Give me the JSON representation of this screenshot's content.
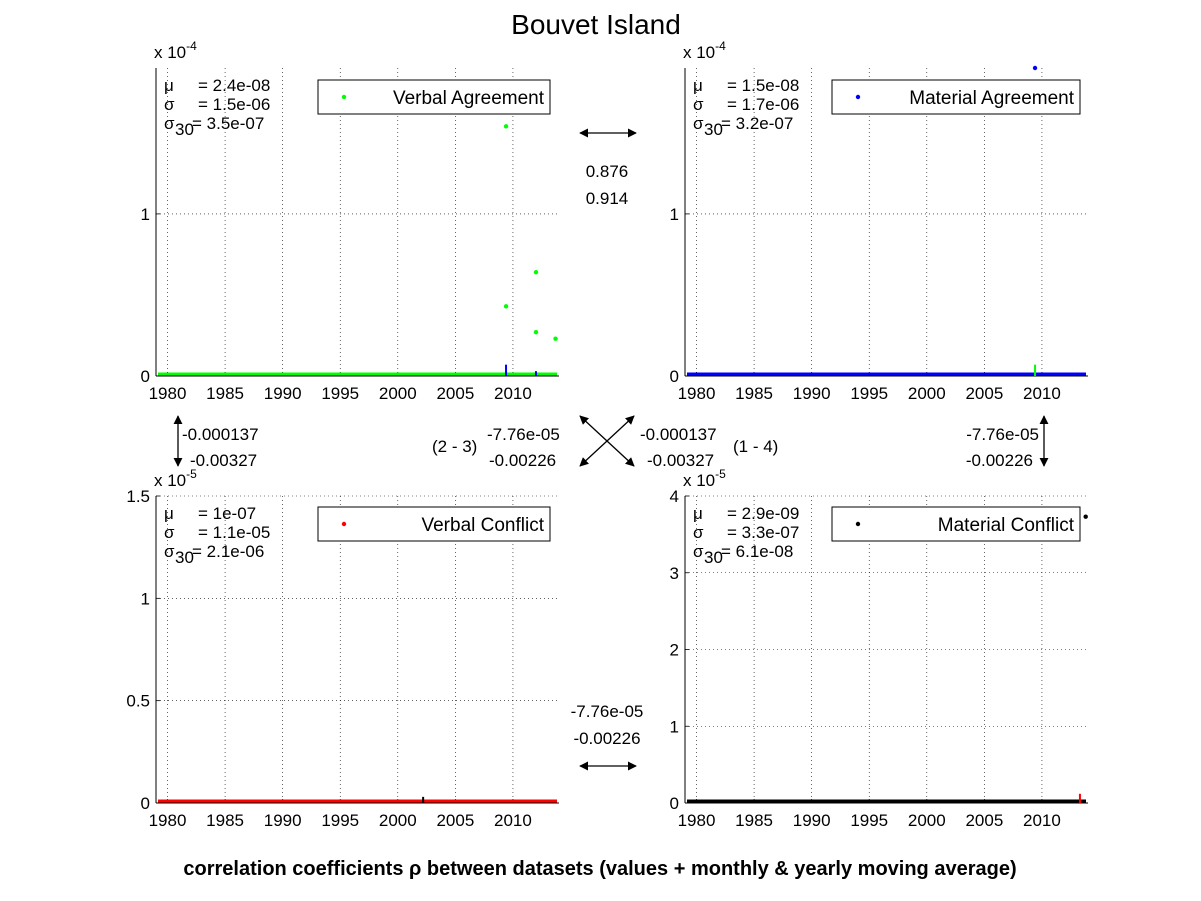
{
  "figure": {
    "title": "Bouvet Island",
    "footer": "correlation coefficients ρ between datasets (values + monthly & yearly moving average)"
  },
  "chart_data": [
    {
      "type": "scatter",
      "name": "Verbal Agreement",
      "color": "#00ff00",
      "exponent_label": "x 10",
      "exponent_power": "-4",
      "xlim": [
        1979,
        2014
      ],
      "ylim": [
        0,
        1.9
      ],
      "x_ticks": [
        1980,
        1985,
        1990,
        1995,
        2000,
        2005,
        2010
      ],
      "x_tick_labels": [
        "1980",
        "1985",
        "1990",
        "1995",
        "2000",
        "2005",
        "2010"
      ],
      "y_ticks": [
        0,
        1
      ],
      "y_tick_labels": [
        "0",
        "1"
      ],
      "legend": "Verbal Agreement",
      "stats": [
        {
          "symbol": "μ",
          "sub": "",
          "value": "= 2.4e-08"
        },
        {
          "symbol": "σ",
          "sub": "",
          "value": "= 1.5e-06"
        },
        {
          "symbol": "σ",
          "sub": "30",
          "value": "= 3.5e-07"
        }
      ],
      "points": [
        [
          2009.4,
          1.54
        ],
        [
          2009.4,
          0.43
        ],
        [
          2012.0,
          0.64
        ],
        [
          2012.0,
          0.27
        ],
        [
          2013.7,
          0.23
        ]
      ],
      "baseline_color": "#00ff00",
      "overlay_spikes": [
        {
          "x": 2009.4,
          "height": 0.07,
          "color": "#0000ff"
        },
        {
          "x": 2012.0,
          "height": 0.03,
          "color": "#0000ff"
        }
      ]
    },
    {
      "type": "scatter",
      "name": "Material Agreement",
      "color": "#0000ff",
      "exponent_label": "x 10",
      "exponent_power": "-4",
      "xlim": [
        1979,
        2014
      ],
      "ylim": [
        0,
        1.9
      ],
      "x_ticks": [
        1980,
        1985,
        1990,
        1995,
        2000,
        2005,
        2010
      ],
      "x_tick_labels": [
        "1980",
        "1985",
        "1990",
        "1995",
        "2000",
        "2005",
        "2010"
      ],
      "y_ticks": [
        0,
        1
      ],
      "y_tick_labels": [
        "0",
        "1"
      ],
      "legend": "Material Agreement",
      "stats": [
        {
          "symbol": "μ",
          "sub": "",
          "value": "= 1.5e-08"
        },
        {
          "symbol": "σ",
          "sub": "",
          "value": "= 1.7e-06"
        },
        {
          "symbol": "σ",
          "sub": "30",
          "value": "= 3.2e-07"
        }
      ],
      "points": [
        [
          2009.4,
          1.9
        ]
      ],
      "baseline_color": "#0000ff",
      "overlay_spikes": [
        {
          "x": 2009.4,
          "height": 0.07,
          "color": "#00ff00"
        }
      ]
    },
    {
      "type": "scatter",
      "name": "Verbal Conflict",
      "color": "#ff0000",
      "exponent_label": "x 10",
      "exponent_power": "-5",
      "xlim": [
        1979,
        2014
      ],
      "ylim": [
        0,
        1.5
      ],
      "x_ticks": [
        1980,
        1985,
        1990,
        1995,
        2000,
        2005,
        2010
      ],
      "x_tick_labels": [
        "1980",
        "1985",
        "1990",
        "1995",
        "2000",
        "2005",
        "2010"
      ],
      "y_ticks": [
        0,
        0.5,
        1,
        1.5
      ],
      "y_tick_labels": [
        "0",
        "0.5",
        "1",
        "1.5"
      ],
      "legend": "Verbal Conflict",
      "stats": [
        {
          "symbol": "μ",
          "sub": "",
          "value": "= 1e-07"
        },
        {
          "symbol": "σ",
          "sub": "",
          "value": "= 1.1e-05"
        },
        {
          "symbol": "σ",
          "sub": "30",
          "value": "= 2.1e-06"
        }
      ],
      "points": [],
      "baseline_color": "#ff0000",
      "overlay_spikes": [
        {
          "x": 2002.2,
          "height": 0.03,
          "color": "#000000"
        }
      ]
    },
    {
      "type": "scatter",
      "name": "Material Conflict",
      "color": "#000000",
      "exponent_label": "x 10",
      "exponent_power": "-5",
      "xlim": [
        1979,
        2014
      ],
      "ylim": [
        0,
        4
      ],
      "x_ticks": [
        1980,
        1985,
        1990,
        1995,
        2000,
        2005,
        2010
      ],
      "x_tick_labels": [
        "1980",
        "1985",
        "1990",
        "1995",
        "2000",
        "2005",
        "2010"
      ],
      "y_ticks": [
        0,
        1,
        2,
        3,
        4
      ],
      "y_tick_labels": [
        "0",
        "1",
        "2",
        "3",
        "4"
      ],
      "legend": "Material Conflict",
      "stats": [
        {
          "symbol": "μ",
          "sub": "",
          "value": "= 2.9e-09"
        },
        {
          "symbol": "σ",
          "sub": "",
          "value": "= 3.3e-07"
        },
        {
          "symbol": "σ",
          "sub": "30",
          "value": "= 6.1e-08"
        }
      ],
      "points": [
        [
          2013.8,
          3.73
        ]
      ],
      "baseline_color": "#000000",
      "overlay_spikes": [
        {
          "x": 2013.3,
          "height": 0.12,
          "color": "#ff0000"
        }
      ]
    }
  ],
  "correlations": {
    "top": [
      "0.876",
      "0.914"
    ],
    "left": [
      "-0.000137",
      "-0.00327"
    ],
    "right": [
      "-7.76e-05",
      "-0.00226"
    ],
    "bottom": [
      "-7.76e-05",
      "-0.00226"
    ],
    "diag_23": [
      "-7.76e-05",
      "-0.00226"
    ],
    "diag_14": [
      "-0.000137",
      "-0.00327"
    ],
    "label_23": "(2 - 3)",
    "label_14": "(1 - 4)"
  }
}
